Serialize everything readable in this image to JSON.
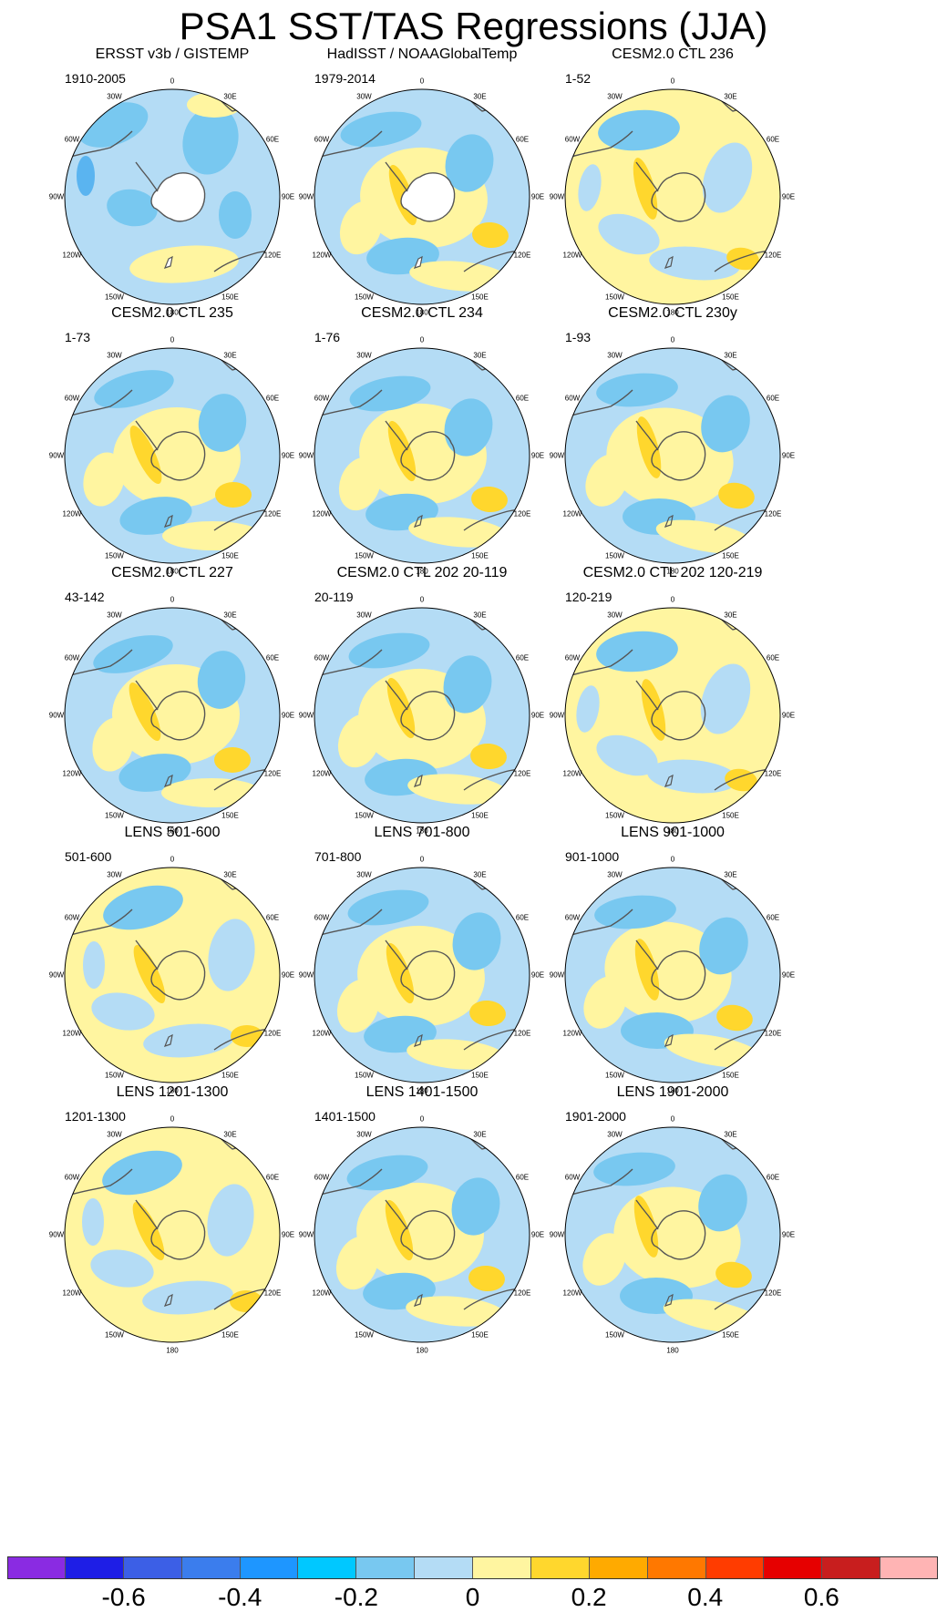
{
  "title": "PSA1 SST/TAS Regressions (JJA)",
  "degree_labels": [
    "0",
    "30E",
    "60E",
    "90E",
    "120E",
    "150E",
    "180",
    "150W",
    "120W",
    "90W",
    "60W",
    "30W"
  ],
  "panels": [
    {
      "title": "ERSST v3b / GISTEMP",
      "subtitle": "1910-2005",
      "dominant": "blue",
      "landmask": true
    },
    {
      "title": "HadISST / NOAAGlobalTemp",
      "subtitle": "1979-2014",
      "dominant": "mixed",
      "landmask": true
    },
    {
      "title": "CESM2.0 CTL 236",
      "subtitle": "1-52",
      "dominant": "yellow",
      "landmask": false
    },
    {
      "title": "CESM2.0 CTL 235",
      "subtitle": "1-73",
      "dominant": "mixed",
      "landmask": false
    },
    {
      "title": "CESM2.0 CTL 234",
      "subtitle": "1-76",
      "dominant": "mixed",
      "landmask": false
    },
    {
      "title": "CESM2.0 CTL 230y",
      "subtitle": "1-93",
      "dominant": "mixed",
      "landmask": false
    },
    {
      "title": "CESM2.0 CTL 227",
      "subtitle": "43-142",
      "dominant": "mixed",
      "landmask": false
    },
    {
      "title": "CESM2.0 CTL 202 20-119",
      "subtitle": "20-119",
      "dominant": "mixed",
      "landmask": false
    },
    {
      "title": "CESM2.0 CTL 202 120-219",
      "subtitle": "120-219",
      "dominant": "yellow",
      "landmask": false
    },
    {
      "title": "LENS 501-600",
      "subtitle": "501-600",
      "dominant": "yellow",
      "landmask": false
    },
    {
      "title": "LENS 701-800",
      "subtitle": "701-800",
      "dominant": "mixed",
      "landmask": false
    },
    {
      "title": "LENS 901-1000",
      "subtitle": "901-1000",
      "dominant": "mixed",
      "landmask": false
    },
    {
      "title": "LENS 1201-1300",
      "subtitle": "1201-1300",
      "dominant": "yellow",
      "landmask": false
    },
    {
      "title": "LENS 1401-1500",
      "subtitle": "1401-1500",
      "dominant": "mixed",
      "landmask": false
    },
    {
      "title": "LENS 1901-2000",
      "subtitle": "1901-2000",
      "dominant": "mixed",
      "landmask": false
    }
  ],
  "colorbar": {
    "colors": [
      "#8a2be2",
      "#1e1ee6",
      "#3c5fe6",
      "#3b7ded",
      "#1e96ff",
      "#00c8ff",
      "#78c8f0",
      "#b4dcf5",
      "#fff5a0",
      "#ffd72d",
      "#ffaa00",
      "#ff7800",
      "#ff3c00",
      "#e60000",
      "#c81e1e",
      "#ffb4b4"
    ],
    "tick_labels": [
      "-0.6",
      "-0.4",
      "-0.2",
      "0",
      "0.2",
      "0.4",
      "0.6"
    ]
  },
  "palette": {
    "light_blue": "#b4dcf5",
    "mid_blue": "#78c8f0",
    "cyan_blue": "#5ab4f0",
    "light_yellow": "#fff5a0",
    "gold": "#ffd72d",
    "orange": "#ffaa00",
    "coast": "#555555"
  }
}
